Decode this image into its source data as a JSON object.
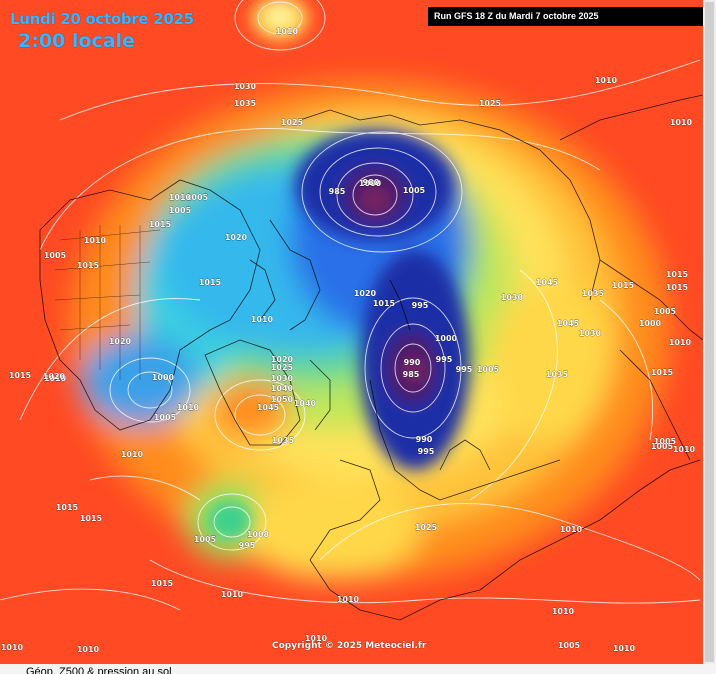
{
  "header": {
    "date_label": "Lundi 20 octobre 2025",
    "time_label": "2:00 locale",
    "run_label": "Run GFS 18 Z du Mardi 7 octobre 2025"
  },
  "footer": {
    "copyright": "Copyright © 2025 Meteociel.fr",
    "caption": "Géop. Z500 & pression au sol"
  },
  "map": {
    "projection": "polar-stereographic-north",
    "palette": {
      "high": "#ff4a24",
      "orange": "#ff8c1a",
      "yellow": "#ffd84a",
      "green": "#9ee05a",
      "cyan": "#3ad0e0",
      "blue": "#2a6fe8",
      "navy": "#1c2fa6",
      "purple": "#4a1f6a",
      "magenta": "#7a2060"
    },
    "pressure_labels": [
      {
        "text": "1010"
      },
      {
        "text": "1030"
      },
      {
        "text": "1035"
      },
      {
        "text": "1025"
      },
      {
        "text": "1025"
      },
      {
        "text": "1010"
      },
      {
        "text": "1010"
      },
      {
        "text": "1005"
      },
      {
        "text": "1015"
      },
      {
        "text": "1005"
      },
      {
        "text": "1010"
      },
      {
        "text": "1015"
      },
      {
        "text": "1020"
      },
      {
        "text": "1005"
      },
      {
        "text": "1010"
      },
      {
        "text": "1000"
      },
      {
        "text": "1015"
      },
      {
        "text": "985"
      },
      {
        "text": "980"
      },
      {
        "text": "1005"
      },
      {
        "text": "1020"
      },
      {
        "text": "1015"
      },
      {
        "text": "1010"
      },
      {
        "text": "1020"
      },
      {
        "text": "1030"
      },
      {
        "text": "1045"
      },
      {
        "text": "1035"
      },
      {
        "text": "1015"
      },
      {
        "text": "1015"
      },
      {
        "text": "1015"
      },
      {
        "text": "1005"
      },
      {
        "text": "1000"
      },
      {
        "text": "1010"
      },
      {
        "text": "1045"
      },
      {
        "text": "1030"
      },
      {
        "text": "1010"
      },
      {
        "text": "1015"
      },
      {
        "text": "1020"
      },
      {
        "text": "1000"
      },
      {
        "text": "990"
      },
      {
        "text": "995"
      },
      {
        "text": "985"
      },
      {
        "text": "995"
      },
      {
        "text": "1005"
      },
      {
        "text": "1035"
      },
      {
        "text": "1020"
      },
      {
        "text": "1000"
      },
      {
        "text": "995"
      },
      {
        "text": "1005"
      },
      {
        "text": "1010"
      },
      {
        "text": "1025"
      },
      {
        "text": "1030"
      },
      {
        "text": "1040"
      },
      {
        "text": "1050"
      },
      {
        "text": "1045"
      },
      {
        "text": "1040"
      },
      {
        "text": "1035"
      },
      {
        "text": "990"
      },
      {
        "text": "995"
      },
      {
        "text": "1010"
      },
      {
        "text": "1005"
      },
      {
        "text": "1015"
      },
      {
        "text": "1015"
      },
      {
        "text": "1005"
      },
      {
        "text": "1008"
      },
      {
        "text": "995"
      },
      {
        "text": "1025"
      },
      {
        "text": "1010"
      },
      {
        "text": "1015"
      },
      {
        "text": "1010"
      },
      {
        "text": "1010"
      },
      {
        "text": "1010"
      },
      {
        "text": "1010"
      },
      {
        "text": "1005"
      },
      {
        "text": "1010"
      },
      {
        "text": "1010"
      },
      {
        "text": "1010"
      },
      {
        "text": "1005"
      },
      {
        "text": "1010"
      },
      {
        "text": "1015"
      }
    ]
  }
}
